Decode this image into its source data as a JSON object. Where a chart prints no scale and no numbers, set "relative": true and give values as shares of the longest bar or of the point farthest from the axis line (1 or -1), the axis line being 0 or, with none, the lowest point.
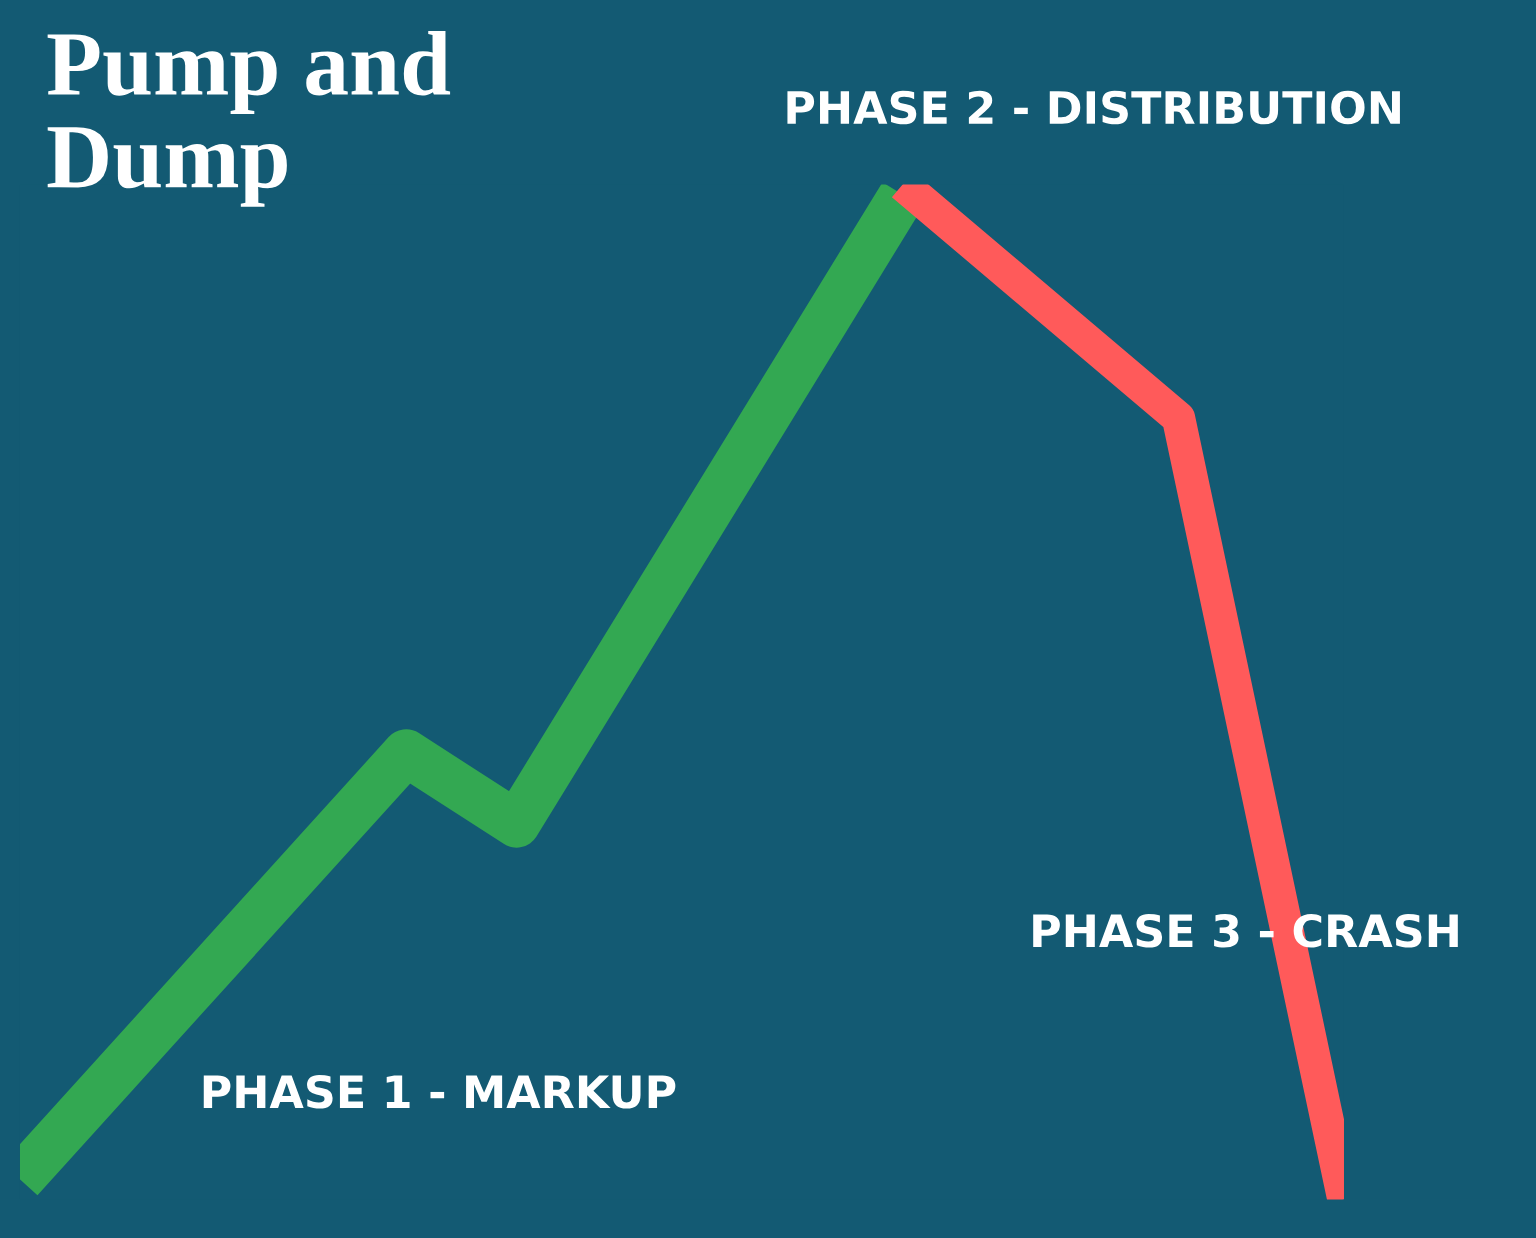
{
  "chart_data": {
    "type": "line",
    "title": "Pump and\nDump",
    "relative": true,
    "categories": [
      null,
      null,
      null,
      null,
      null,
      null,
      null,
      null,
      null,
      null,
      null,
      null,
      null,
      null,
      null,
      null,
      null,
      null,
      null,
      null,
      null,
      null,
      null,
      null,
      null
    ],
    "series": [
      {
        "color": "#33a852",
        "values": [
          0.02,
          null,
          null,
          null,
          null,
          null,
          null,
          0.44,
          null,
          0.37,
          null,
          null,
          null,
          null,
          null,
          null,
          0.99,
          null,
          null,
          null,
          null,
          null,
          null,
          null,
          null
        ]
      },
      {
        "color": "#ff5a5a",
        "values": [
          null,
          null,
          null,
          null,
          null,
          null,
          null,
          null,
          null,
          null,
          null,
          null,
          null,
          null,
          null,
          null,
          1.0,
          null,
          null,
          null,
          null,
          0.77,
          null,
          null,
          0
        ]
      }
    ],
    "annotations": [
      "PHASE 1 - MARKUP",
      "PHASE 2 - DISTRIBUTION",
      "PHASE 3 - CRASH"
    ],
    "legend": false,
    "marker": "none",
    "line_style": "solid"
  }
}
